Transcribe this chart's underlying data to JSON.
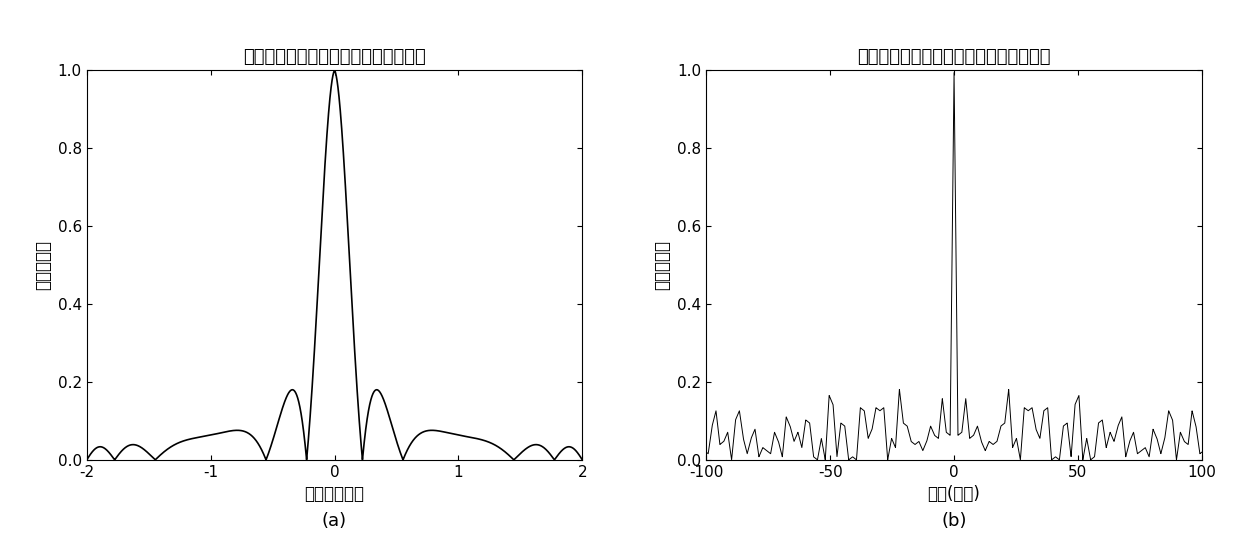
{
  "title_left": "现有技术获得的信号的距离模糊函数图",
  "title_right": "本发明方法获得的信号的距离模糊函数图",
  "ylabel_left": "归一化幅度",
  "ylabel_right": "归一化幅度",
  "xlabel_left": "延迟（微秒）",
  "xlabel_right": "延时(微秒)",
  "label_a": "(a)",
  "label_b": "(b)",
  "xlim_left": [
    -2,
    2
  ],
  "xlim_right": [
    -100,
    100
  ],
  "ylim_left": [
    0,
    1
  ],
  "ylim_right": [
    0,
    1
  ],
  "xticks_left": [
    -2,
    -1,
    0,
    1,
    2
  ],
  "xticks_right": [
    -100,
    -50,
    0,
    50,
    100
  ],
  "yticks": [
    0,
    0.2,
    0.4,
    0.6,
    0.8,
    1
  ],
  "line_color": "#000000",
  "bg_color": "#ffffff"
}
